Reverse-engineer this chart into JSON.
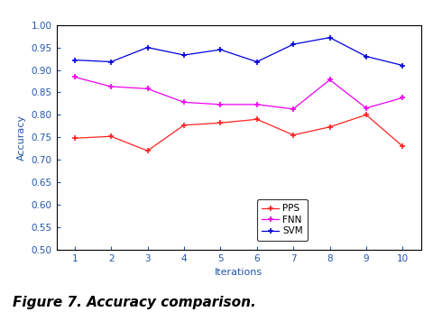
{
  "iterations": [
    1,
    2,
    3,
    4,
    5,
    6,
    7,
    8,
    9,
    10
  ],
  "PPS": [
    0.748,
    0.752,
    0.72,
    0.777,
    0.782,
    0.79,
    0.755,
    0.773,
    0.8,
    0.73
  ],
  "FNN": [
    0.884,
    0.863,
    0.858,
    0.828,
    0.823,
    0.823,
    0.813,
    0.878,
    0.815,
    0.838
  ],
  "SVM": [
    0.922,
    0.918,
    0.95,
    0.933,
    0.945,
    0.918,
    0.957,
    0.972,
    0.93,
    0.91
  ],
  "PPS_color": "#ff2222",
  "FNN_color": "#ee00ee",
  "SVM_color": "#0000dd",
  "tick_color": "#2255aa",
  "xlabel": "Iterations",
  "ylabel": "Accuracy",
  "ylim": [
    0.5,
    1.0
  ],
  "xlim_min": 0.5,
  "xlim_max": 10.5,
  "yticks": [
    0.5,
    0.55,
    0.6,
    0.65,
    0.7,
    0.75,
    0.8,
    0.85,
    0.9,
    0.95,
    1.0
  ],
  "xticks": [
    1,
    2,
    3,
    4,
    5,
    6,
    7,
    8,
    9,
    10
  ],
  "legend_labels": [
    "PPS",
    "FNN",
    "SVM"
  ],
  "figure_caption": "Figure 7. Accuracy comparison.",
  "background_color": "#ffffff",
  "caption_fontsize": 11,
  "axis_label_fontsize": 8,
  "tick_fontsize": 7.5,
  "legend_fontsize": 7.5
}
